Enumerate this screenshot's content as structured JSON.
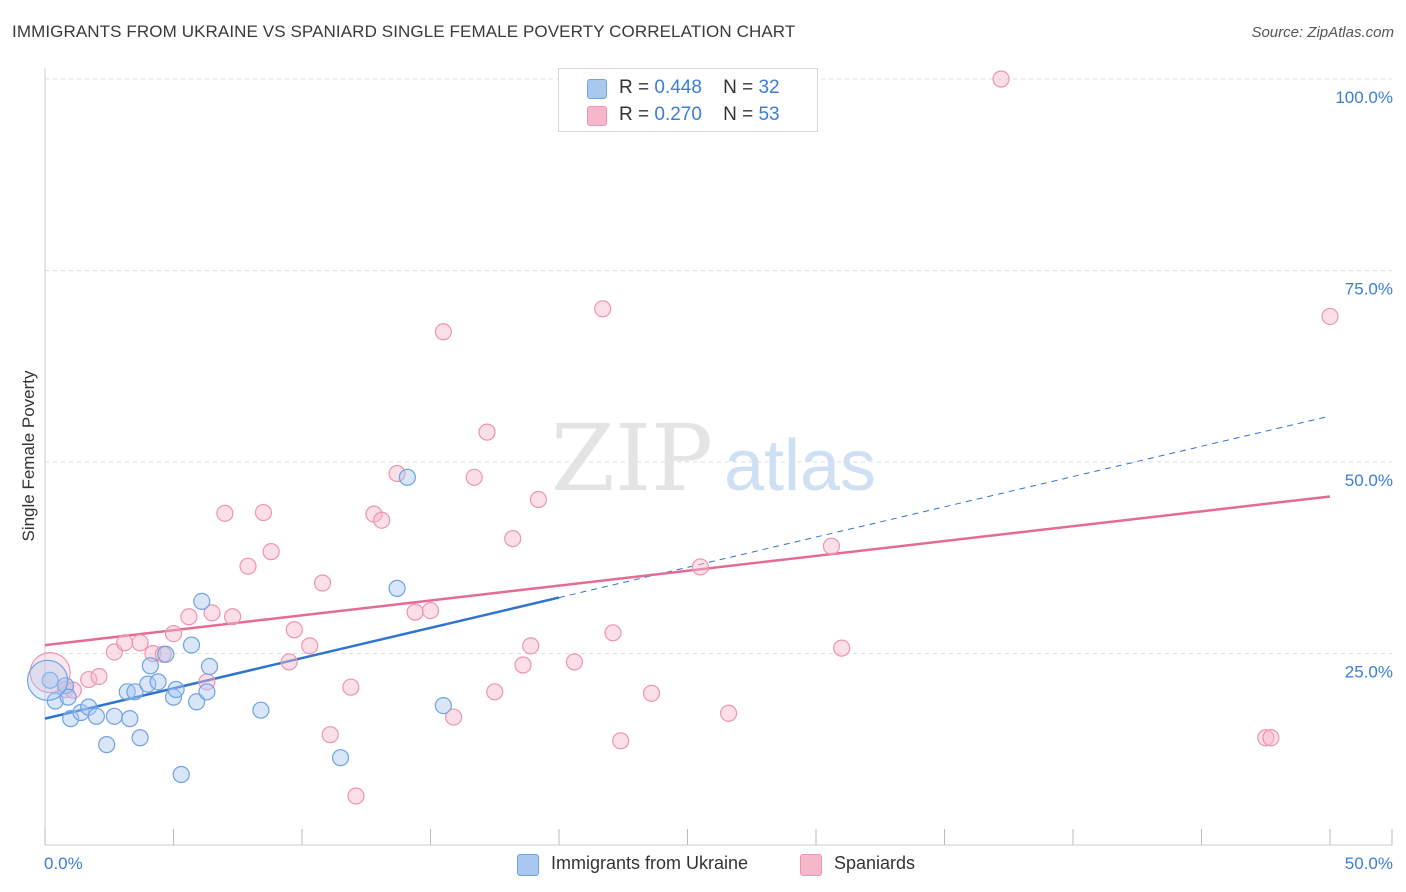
{
  "header": {
    "title": "IMMIGRANTS FROM UKRAINE VS SPANIARD SINGLE FEMALE POVERTY CORRELATION CHART",
    "source": "Source: ZipAtlas.com"
  },
  "watermark": {
    "part1": "ZIP",
    "part2": "atlas"
  },
  "legend_top": [
    {
      "r_label": "R =",
      "r_value": "0.448",
      "n_label": "N =",
      "n_value": "32",
      "color": "#a8c8f0"
    },
    {
      "r_label": "R =",
      "r_value": "0.270",
      "n_label": "N =",
      "n_value": "53",
      "color": "#f5b8cb"
    }
  ],
  "legend_bottom": [
    {
      "label": "Immigrants from Ukraine",
      "color": "#a8c8f0"
    },
    {
      "label": "Spaniards",
      "color": "#f5b8cb"
    }
  ],
  "colors": {
    "blue_fill": "#a8c8f0",
    "blue_stroke": "#6fa3e3",
    "blue_line": "#2f74d0",
    "pink_fill": "#f5b8cb",
    "pink_stroke": "#ee94b0",
    "pink_line": "#e56b95",
    "tick_label": "#3b7dd8",
    "grid": "#dddddd"
  },
  "chart_data": {
    "type": "scatter",
    "title": "IMMIGRANTS FROM UKRAINE VS SPANIARD SINGLE FEMALE POVERTY CORRELATION CHART",
    "xlabel": "",
    "ylabel": "Single Female Poverty",
    "xlim": [
      0,
      50
    ],
    "ylim": [
      0,
      100
    ],
    "x_tick_labels": [
      "0.0%",
      "50.0%"
    ],
    "y_ticks": [
      25,
      50,
      75,
      100
    ],
    "y_tick_labels": [
      "25.0%",
      "50.0%",
      "75.0%",
      "100.0%"
    ],
    "grid": true,
    "series": [
      {
        "name": "Immigrants from Ukraine",
        "r": 0.448,
        "n": 32,
        "trend": {
          "x0": 0,
          "y0": 16.5,
          "x1": 20,
          "y1": 32.3,
          "dash_x1": 50,
          "dash_y1": 56.0
        },
        "points": [
          [
            0.2,
            21.5
          ],
          [
            0.4,
            18.8
          ],
          [
            0.8,
            20.8
          ],
          [
            0.9,
            19.3
          ],
          [
            1.0,
            16.5
          ],
          [
            1.4,
            17.3
          ],
          [
            1.7,
            18.0
          ],
          [
            2.0,
            16.8
          ],
          [
            2.4,
            13.1
          ],
          [
            2.7,
            16.8
          ],
          [
            3.2,
            20.0
          ],
          [
            3.3,
            16.5
          ],
          [
            3.5,
            20.0
          ],
          [
            3.7,
            14.0
          ],
          [
            4.0,
            21.0
          ],
          [
            4.1,
            23.4
          ],
          [
            4.4,
            21.3
          ],
          [
            4.7,
            24.9
          ],
          [
            5.0,
            19.3
          ],
          [
            5.1,
            20.3
          ],
          [
            5.3,
            9.2
          ],
          [
            5.7,
            26.1
          ],
          [
            5.9,
            18.7
          ],
          [
            6.1,
            31.8
          ],
          [
            6.3,
            20.0
          ],
          [
            6.4,
            23.3
          ],
          [
            8.4,
            17.6
          ],
          [
            11.5,
            11.4
          ],
          [
            13.7,
            33.5
          ],
          [
            14.1,
            48.0
          ],
          [
            15.5,
            18.2
          ],
          [
            0.1,
            21.5
          ]
        ]
      },
      {
        "name": "Spaniards",
        "r": 0.27,
        "n": 53,
        "trend": {
          "x0": 0,
          "y0": 26.1,
          "x1": 50,
          "y1": 45.5
        },
        "points": [
          [
            0.2,
            22.5
          ],
          [
            0.8,
            20.3
          ],
          [
            1.1,
            20.2
          ],
          [
            1.7,
            21.6
          ],
          [
            2.1,
            22.0
          ],
          [
            2.7,
            25.2
          ],
          [
            3.1,
            26.4
          ],
          [
            3.7,
            26.4
          ],
          [
            4.2,
            25.0
          ],
          [
            4.6,
            24.9
          ],
          [
            5.0,
            27.6
          ],
          [
            5.6,
            29.8
          ],
          [
            6.3,
            21.3
          ],
          [
            6.5,
            30.3
          ],
          [
            7.0,
            43.3
          ],
          [
            7.3,
            29.8
          ],
          [
            7.9,
            36.4
          ],
          [
            8.5,
            43.4
          ],
          [
            8.8,
            38.3
          ],
          [
            9.5,
            23.9
          ],
          [
            9.7,
            28.1
          ],
          [
            10.3,
            26.0
          ],
          [
            10.8,
            34.2
          ],
          [
            11.1,
            14.4
          ],
          [
            11.9,
            20.6
          ],
          [
            12.1,
            6.4
          ],
          [
            12.8,
            43.2
          ],
          [
            13.1,
            42.4
          ],
          [
            13.7,
            48.5
          ],
          [
            14.4,
            30.4
          ],
          [
            15.0,
            30.6
          ],
          [
            15.5,
            67.0
          ],
          [
            15.9,
            16.7
          ],
          [
            16.7,
            48.0
          ],
          [
            17.2,
            53.9
          ],
          [
            17.5,
            20.0
          ],
          [
            18.2,
            40.0
          ],
          [
            18.6,
            23.5
          ],
          [
            18.9,
            26.0
          ],
          [
            19.2,
            45.1
          ],
          [
            20.6,
            23.9
          ],
          [
            21.7,
            70.0
          ],
          [
            22.1,
            27.7
          ],
          [
            22.4,
            13.6
          ],
          [
            23.6,
            19.8
          ],
          [
            25.5,
            36.3
          ],
          [
            26.6,
            17.2
          ],
          [
            30.6,
            39.0
          ],
          [
            31.0,
            25.7
          ],
          [
            37.2,
            100.0
          ],
          [
            47.5,
            14.0
          ],
          [
            47.7,
            14.0
          ],
          [
            50.0,
            69.0
          ]
        ]
      }
    ]
  }
}
